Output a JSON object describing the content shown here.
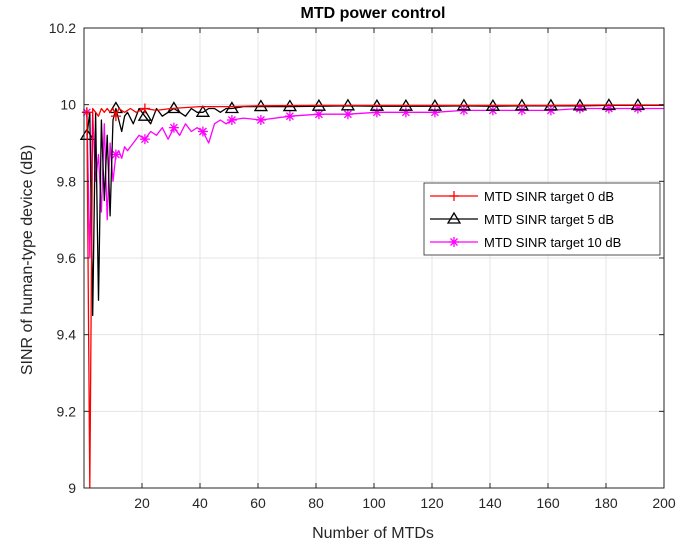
{
  "chart_data": {
    "type": "line",
    "title": "MTD power control",
    "xlabel": "Number of MTDs",
    "ylabel": "SINR of human-type device (dB)",
    "xlim": [
      0,
      200
    ],
    "ylim": [
      9,
      10.2
    ],
    "xticks": [
      20,
      40,
      60,
      80,
      100,
      120,
      140,
      160,
      180,
      200
    ],
    "yticks": [
      9,
      9.2,
      9.4,
      9.6,
      9.8,
      10,
      10.2
    ],
    "ytick_labels": [
      "9",
      "9.2",
      "9.4",
      "9.6",
      "9.8",
      "10",
      "10.2"
    ],
    "grid": true,
    "legend_position": "right",
    "series": [
      {
        "name": "MTD SINR target 0 dB",
        "color": "#ff0000",
        "marker": "plus",
        "x": [
          1,
          2,
          3,
          4,
          5,
          6,
          7,
          8,
          9,
          10,
          11,
          12,
          14,
          16,
          18,
          21,
          25,
          30,
          40,
          50,
          60,
          80,
          100,
          120,
          140,
          160,
          180,
          200
        ],
        "y": [
          9.98,
          9.0,
          9.99,
          9.98,
          9.97,
          9.99,
          9.98,
          9.99,
          9.98,
          9.99,
          9.97,
          9.99,
          9.98,
          9.99,
          9.98,
          9.99,
          9.985,
          9.99,
          9.995,
          9.995,
          9.997,
          9.998,
          9.998,
          9.998,
          9.998,
          9.998,
          9.999,
          9.999
        ]
      },
      {
        "name": "MTD SINR target 5 dB",
        "color": "#000000",
        "marker": "triangle",
        "x": [
          1,
          2,
          3,
          4,
          5,
          6,
          7,
          8,
          9,
          10,
          11,
          12,
          13,
          14,
          15,
          17,
          19,
          21,
          23,
          25,
          27,
          29,
          31,
          33,
          35,
          37,
          39,
          41,
          43,
          45,
          47,
          49,
          51,
          55,
          61,
          71,
          81,
          91,
          101,
          111,
          121,
          131,
          141,
          151,
          161,
          171,
          181,
          191,
          200
        ],
        "y": [
          9.92,
          9.98,
          9.45,
          9.98,
          9.49,
          9.96,
          9.75,
          9.92,
          9.71,
          9.96,
          9.99,
          9.96,
          9.93,
          9.97,
          9.98,
          9.95,
          9.99,
          9.97,
          9.95,
          9.99,
          9.97,
          9.98,
          9.99,
          9.98,
          9.97,
          9.99,
          9.98,
          9.98,
          9.99,
          9.99,
          9.98,
          9.99,
          9.99,
          9.995,
          9.995,
          9.995,
          9.996,
          9.997,
          9.996,
          9.996,
          9.996,
          9.997,
          9.996,
          9.997,
          9.997,
          9.997,
          9.998,
          9.998,
          9.998
        ]
      },
      {
        "name": "MTD SINR target 10 dB",
        "color": "#ff00ff",
        "marker": "asterisk",
        "x": [
          1,
          2,
          3,
          4,
          5,
          6,
          7,
          8,
          9,
          10,
          11,
          12,
          13,
          14,
          15,
          17,
          19,
          21,
          23,
          25,
          27,
          29,
          31,
          33,
          35,
          37,
          39,
          41,
          43,
          45,
          47,
          49,
          51,
          55,
          61,
          71,
          81,
          91,
          101,
          111,
          121,
          131,
          141,
          151,
          161,
          171,
          181,
          191,
          200
        ],
        "y": [
          9.98,
          9.6,
          9.98,
          9.8,
          9.87,
          9.72,
          9.95,
          9.7,
          9.9,
          9.8,
          9.87,
          9.88,
          9.86,
          9.89,
          9.88,
          9.9,
          9.92,
          9.91,
          9.93,
          9.92,
          9.94,
          9.91,
          9.94,
          9.92,
          9.95,
          9.93,
          9.94,
          9.93,
          9.9,
          9.95,
          9.96,
          9.95,
          9.96,
          9.965,
          9.96,
          9.97,
          9.975,
          9.975,
          9.98,
          9.98,
          9.98,
          9.985,
          9.985,
          9.985,
          9.985,
          9.99,
          9.99,
          9.99,
          9.99
        ]
      }
    ]
  }
}
